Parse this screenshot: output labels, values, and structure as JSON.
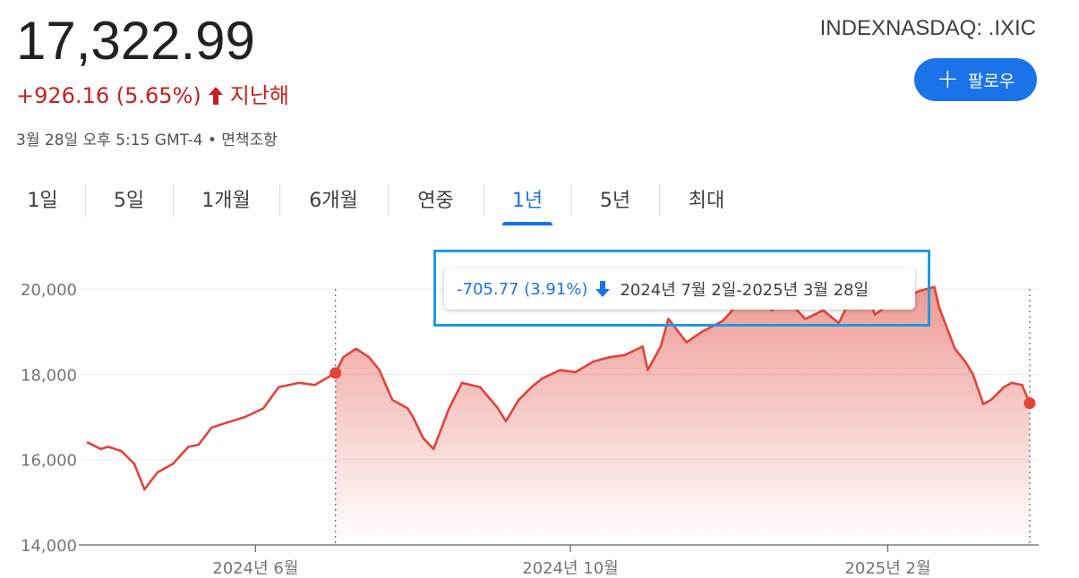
{
  "header": {
    "price": "17,322.99",
    "change": "+926.16 (5.65%)",
    "change_period": "지난해",
    "meta": "3월 28일 오후 5:15 GMT-4 • 면책조항",
    "ticker": "INDEXNASDAQ: .IXIC",
    "follow_label": "팔로우"
  },
  "tabs": [
    {
      "label": "1일"
    },
    {
      "label": "5일"
    },
    {
      "label": "1개월"
    },
    {
      "label": "6개월"
    },
    {
      "label": "연중"
    },
    {
      "label": "1년",
      "active": true
    },
    {
      "label": "5년"
    },
    {
      "label": "최대"
    }
  ],
  "tooltip": {
    "change": "-705.77 (3.91%)",
    "range": "2024년 7월 2일-2025년 3월 28일"
  },
  "colors": {
    "line": "#e0443a",
    "negative": "#c5221f",
    "accent": "#1a73e8",
    "highlight_box": "#1b9be0"
  },
  "chart_data": {
    "type": "line",
    "series": [
      {
        "x": [
          "2024-03-28",
          "2024-04-02",
          "2024-04-05",
          "2024-04-10",
          "2024-04-15",
          "2024-04-19",
          "2024-04-24",
          "2024-04-30",
          "2024-05-06",
          "2024-05-10",
          "2024-05-15",
          "2024-05-20",
          "2024-05-28",
          "2024-06-04",
          "2024-06-10",
          "2024-06-18",
          "2024-06-24",
          "2024-07-02",
          "2024-07-05",
          "2024-07-10",
          "2024-07-15",
          "2024-07-19",
          "2024-07-24",
          "2024-07-30",
          "2024-08-01",
          "2024-08-05",
          "2024-08-09",
          "2024-08-15",
          "2024-08-20",
          "2024-08-27",
          "2024-09-03",
          "2024-09-06",
          "2024-09-11",
          "2024-09-16",
          "2024-09-20",
          "2024-09-27",
          "2024-10-03",
          "2024-10-10",
          "2024-10-16",
          "2024-10-22",
          "2024-10-29",
          "2024-10-31",
          "2024-11-05",
          "2024-11-08",
          "2024-11-15",
          "2024-11-21",
          "2024-11-29",
          "2024-12-05",
          "2024-12-11",
          "2024-12-16",
          "2024-12-18",
          "2024-12-24",
          "2024-12-31",
          "2025-01-07",
          "2025-01-13",
          "2025-01-17",
          "2025-01-24",
          "2025-01-27",
          "2025-02-03",
          "2025-02-07",
          "2025-02-13",
          "2025-02-19",
          "2025-02-21",
          "2025-02-27",
          "2025-03-03",
          "2025-03-06",
          "2025-03-10",
          "2025-03-13",
          "2025-03-18",
          "2025-03-21",
          "2025-03-25",
          "2025-03-28"
        ],
        "values": [
          16400,
          16250,
          16300,
          16200,
          15900,
          15300,
          15700,
          15900,
          16300,
          16350,
          16750,
          16850,
          17000,
          17200,
          17700,
          17800,
          17750,
          18030,
          18400,
          18600,
          18400,
          18100,
          17400,
          17200,
          17000,
          16500,
          16250,
          17200,
          17800,
          17700,
          17200,
          16900,
          17400,
          17700,
          17900,
          18100,
          18050,
          18300,
          18400,
          18450,
          18650,
          18100,
          18650,
          19300,
          18750,
          19000,
          19250,
          19650,
          19850,
          20150,
          19500,
          19750,
          19300,
          19500,
          19200,
          19700,
          19900,
          19400,
          19700,
          19800,
          19950,
          20050,
          19550,
          18600,
          18300,
          18000,
          17300,
          17400,
          17700,
          17800,
          17750,
          17322.99
        ]
      }
    ],
    "xticks": [
      "2024년 6월",
      "2024년 10월",
      "2025년 2월"
    ],
    "yticks": [
      "14,000",
      "16,000",
      "18,000",
      "20,000"
    ],
    "ylim": [
      14000,
      20400
    ],
    "selection_start": "2024-07-02",
    "selection_end": "2025-03-28",
    "grid": true
  }
}
